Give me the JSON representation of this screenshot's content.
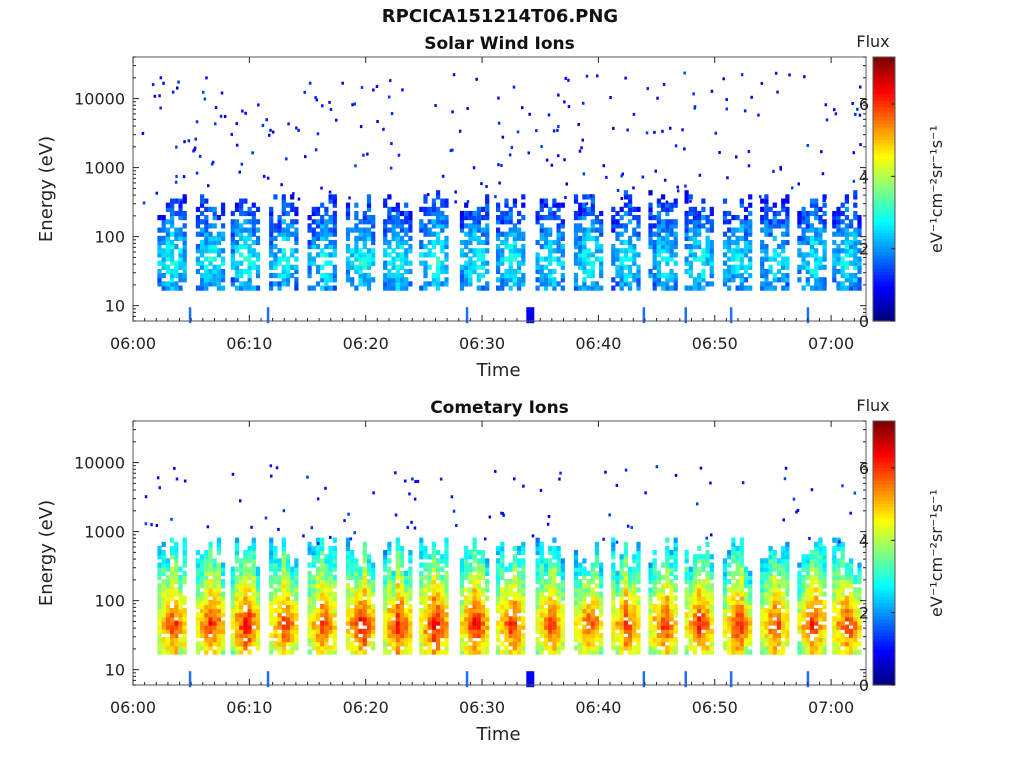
{
  "suptitle": "RPCICA151214T06.PNG",
  "colors": {
    "axis": "#222222",
    "colormap": "jet",
    "colormap_stops": [
      "#00007f",
      "#0000ff",
      "#007fff",
      "#00ffff",
      "#7fff7f",
      "#ffff00",
      "#ff7f00",
      "#ff0000",
      "#7f0000"
    ]
  },
  "chart_data": [
    {
      "type": "heatmap",
      "title": "Solar Wind Ions",
      "xlabel": "Time",
      "ylabel": "Energy (eV)",
      "xticks": [
        "06:00",
        "06:10",
        "06:20",
        "06:30",
        "06:40",
        "06:50",
        "07:00"
      ],
      "xlim_minutes": [
        0,
        63
      ],
      "yticks": [
        "10",
        "100",
        "1000",
        "10000"
      ],
      "yscale": "log",
      "ylim": [
        6,
        40000
      ],
      "colorbar": {
        "title": "Flux",
        "label": "eV⁻¹cm⁻²sr⁻¹s⁻¹",
        "ticks": [
          "0",
          "2",
          "4",
          "6"
        ],
        "clim": [
          0,
          7.3
        ]
      },
      "bursts": [
        {
          "t": 3.3,
          "flux": 3.0
        },
        {
          "t": 6.6,
          "flux": 3.0
        },
        {
          "t": 9.6,
          "flux": 3.0
        },
        {
          "t": 12.9,
          "flux": 2.9
        },
        {
          "t": 16.2,
          "flux": 2.9
        },
        {
          "t": 19.5,
          "flux": 3.1
        },
        {
          "t": 22.7,
          "flux": 3.0
        },
        {
          "t": 25.8,
          "flux": 3.1
        },
        {
          "t": 29.3,
          "flux": 3.0
        },
        {
          "t": 32.4,
          "flux": 3.0
        },
        {
          "t": 35.8,
          "flux": 2.9
        },
        {
          "t": 39.1,
          "flux": 3.0
        },
        {
          "t": 42.3,
          "flux": 2.8
        },
        {
          "t": 45.5,
          "flux": 2.8
        },
        {
          "t": 48.6,
          "flux": 2.9
        },
        {
          "t": 51.9,
          "flux": 2.9
        },
        {
          "t": 55.1,
          "flux": 2.8
        },
        {
          "t": 58.3,
          "flux": 2.9
        },
        {
          "t": 61.3,
          "flux": 2.9
        }
      ]
    },
    {
      "type": "heatmap",
      "title": "Cometary Ions",
      "xlabel": "Time",
      "ylabel": "Energy (eV)",
      "xticks": [
        "06:00",
        "06:10",
        "06:20",
        "06:30",
        "06:40",
        "06:50",
        "07:00"
      ],
      "xlim_minutes": [
        0,
        63
      ],
      "yticks": [
        "10",
        "100",
        "1000",
        "10000"
      ],
      "yscale": "log",
      "ylim": [
        6,
        40000
      ],
      "colorbar": {
        "title": "Flux",
        "label": "eV⁻¹cm⁻²sr⁻¹s⁻¹",
        "ticks": [
          "0",
          "2",
          "4",
          "6"
        ],
        "clim": [
          0,
          7.3
        ]
      },
      "bursts": [
        {
          "t": 3.3,
          "flux": 6.2
        },
        {
          "t": 6.6,
          "flux": 6.3
        },
        {
          "t": 9.6,
          "flux": 6.5
        },
        {
          "t": 12.9,
          "flux": 6.2
        },
        {
          "t": 16.2,
          "flux": 6.1
        },
        {
          "t": 19.5,
          "flux": 6.6
        },
        {
          "t": 22.7,
          "flux": 6.4
        },
        {
          "t": 25.8,
          "flux": 6.5
        },
        {
          "t": 29.3,
          "flux": 6.4
        },
        {
          "t": 32.4,
          "flux": 6.3
        },
        {
          "t": 35.8,
          "flux": 6.0
        },
        {
          "t": 39.1,
          "flux": 6.1
        },
        {
          "t": 42.3,
          "flux": 6.2
        },
        {
          "t": 45.5,
          "flux": 6.2
        },
        {
          "t": 48.6,
          "flux": 6.3
        },
        {
          "t": 51.9,
          "flux": 6.2
        },
        {
          "t": 55.1,
          "flux": 6.1
        },
        {
          "t": 58.3,
          "flux": 6.2
        },
        {
          "t": 61.3,
          "flux": 6.3
        }
      ]
    }
  ]
}
